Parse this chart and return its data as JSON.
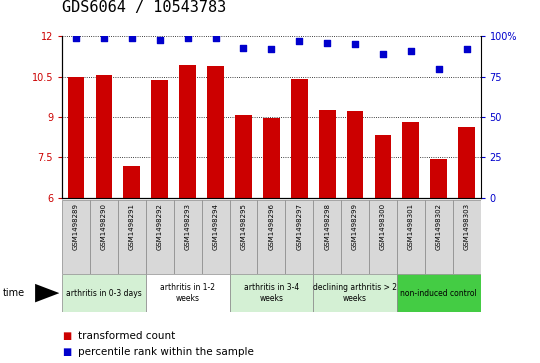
{
  "title": "GDS6064 / 10543783",
  "categories": [
    "GSM1498289",
    "GSM1498290",
    "GSM1498291",
    "GSM1498292",
    "GSM1498293",
    "GSM1498294",
    "GSM1498295",
    "GSM1498296",
    "GSM1498297",
    "GSM1498298",
    "GSM1498299",
    "GSM1498300",
    "GSM1498301",
    "GSM1498302",
    "GSM1498303"
  ],
  "bar_values": [
    10.5,
    10.56,
    7.18,
    10.37,
    10.93,
    10.88,
    9.08,
    8.97,
    10.43,
    9.28,
    9.24,
    8.32,
    8.83,
    7.46,
    8.62
  ],
  "scatter_values": [
    99,
    99,
    99,
    98,
    99,
    99,
    93,
    92,
    97,
    96,
    95,
    89,
    91,
    80,
    92
  ],
  "ylim_left": [
    6,
    12
  ],
  "ylim_right": [
    0,
    100
  ],
  "yticks_left": [
    6,
    7.5,
    9,
    10.5,
    12
  ],
  "yticks_right": [
    0,
    25,
    50,
    75,
    100
  ],
  "bar_color": "#cc0000",
  "scatter_color": "#0000cc",
  "group_labels": [
    "arthritis in 0-3 days",
    "arthritis in 1-2\nweeks",
    "arthritis in 3-4\nweeks",
    "declining arthritis > 2\nweeks",
    "non-induced control"
  ],
  "group_ranges": [
    [
      0,
      3
    ],
    [
      3,
      6
    ],
    [
      6,
      9
    ],
    [
      9,
      12
    ],
    [
      12,
      15
    ]
  ],
  "group_colors": [
    "#d4f0d4",
    "#ffffff",
    "#d4f0d4",
    "#d4f0d4",
    "#44cc44"
  ],
  "legend_bar_label": "transformed count",
  "legend_scatter_label": "percentile rank within the sample",
  "title_fontsize": 11,
  "tick_fontsize": 7,
  "label_fontsize": 7.5
}
